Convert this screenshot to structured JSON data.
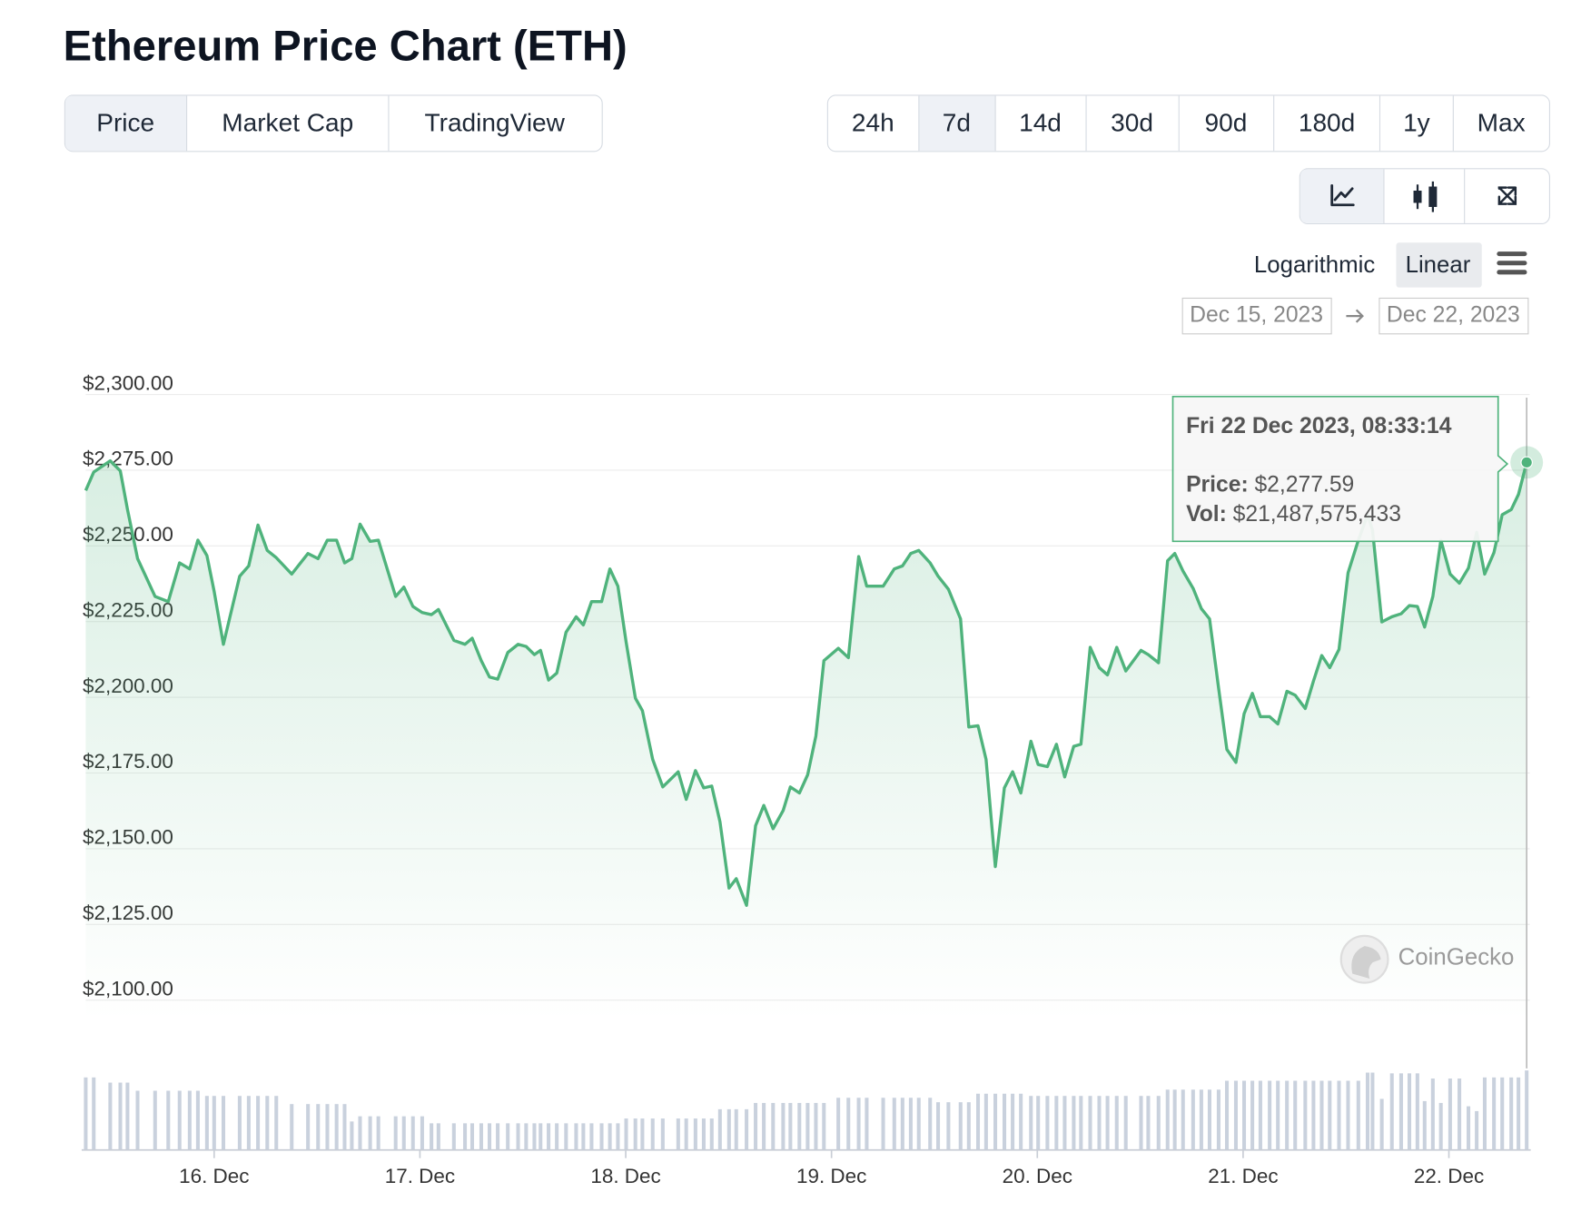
{
  "chart_data": {
    "type": "line",
    "title": "Ethereum Price Chart (ETH)",
    "tabs": [
      "Price",
      "Market Cap",
      "TradingView"
    ],
    "ranges": [
      "24h",
      "7d",
      "14d",
      "30d",
      "90d",
      "180d",
      "1y",
      "Max"
    ],
    "scale_options": [
      "Logarithmic",
      "Linear"
    ],
    "date_from": "Dec 15, 2023",
    "date_to": "Dec 22, 2023",
    "watermark": "CoinGecko",
    "color": "#4fb37c",
    "volume_color": "#c9d1dd",
    "grid": true,
    "ylim": [
      2100,
      2300
    ],
    "yticks": [
      {
        "value": 2300,
        "label": "$2,300.00"
      },
      {
        "value": 2275,
        "label": "$2,275.00"
      },
      {
        "value": 2250,
        "label": "$2,250.00"
      },
      {
        "value": 2225,
        "label": "$2,225.00"
      },
      {
        "value": 2200,
        "label": "$2,200.00"
      },
      {
        "value": 2175,
        "label": "$2,175.00"
      },
      {
        "value": 2150,
        "label": "$2,150.00"
      },
      {
        "value": 2125,
        "label": "$2,125.00"
      },
      {
        "value": 2100,
        "label": "$2,100.00"
      }
    ],
    "xlim": [
      15.376,
      22.378
    ],
    "xticks": [
      {
        "value": 16,
        "label": "16. Dec"
      },
      {
        "value": 17,
        "label": "17. Dec"
      },
      {
        "value": 18,
        "label": "18. Dec"
      },
      {
        "value": 19,
        "label": "19. Dec"
      },
      {
        "value": 20,
        "label": "20. Dec"
      },
      {
        "value": 21,
        "label": "21. Dec"
      },
      {
        "value": 22,
        "label": "22. Dec"
      }
    ],
    "x": [
      15.376,
      15.415,
      15.495,
      15.544,
      15.579,
      15.628,
      15.713,
      15.777,
      15.832,
      15.881,
      15.921,
      15.965,
      16.0,
      16.045,
      16.124,
      16.168,
      16.213,
      16.258,
      16.302,
      16.377,
      16.456,
      16.505,
      16.55,
      16.595,
      16.634,
      16.669,
      16.709,
      16.758,
      16.798,
      16.882,
      16.922,
      16.966,
      17.011,
      17.056,
      17.09,
      17.165,
      17.219,
      17.254,
      17.298,
      17.338,
      17.378,
      17.427,
      17.477,
      17.516,
      17.556,
      17.586,
      17.625,
      17.665,
      17.71,
      17.759,
      17.794,
      17.834,
      17.883,
      17.923,
      17.962,
      18.002,
      18.047,
      18.081,
      18.131,
      18.18,
      18.255,
      18.294,
      18.339,
      18.379,
      18.418,
      18.458,
      18.502,
      18.537,
      18.587,
      18.631,
      18.671,
      18.716,
      18.765,
      18.8,
      18.844,
      18.884,
      18.924,
      18.963,
      19.033,
      19.082,
      19.132,
      19.171,
      19.251,
      19.305,
      19.345,
      19.385,
      19.424,
      19.479,
      19.518,
      19.568,
      19.627,
      19.667,
      19.712,
      19.751,
      19.796,
      19.84,
      19.88,
      19.92,
      19.969,
      20.004,
      20.049,
      20.093,
      20.133,
      20.177,
      20.212,
      20.257,
      20.301,
      20.341,
      20.386,
      20.43,
      20.504,
      20.539,
      20.589,
      20.633,
      20.668,
      20.708,
      20.757,
      20.797,
      20.837,
      20.881,
      20.921,
      20.965,
      21.005,
      21.045,
      21.084,
      21.129,
      21.169,
      21.213,
      21.253,
      21.302,
      21.342,
      21.382,
      21.421,
      21.466,
      21.51,
      21.56,
      21.605,
      21.629,
      21.674,
      21.723,
      21.768,
      21.808,
      21.847,
      21.882,
      21.922,
      21.961,
      22.006,
      22.051,
      22.095,
      22.135,
      22.174,
      22.219,
      22.259,
      22.303,
      22.338,
      22.378
    ],
    "values": [
      2268.3,
      2274.4,
      2278.1,
      2274.8,
      2262.0,
      2245.8,
      2233.3,
      2231.6,
      2244.4,
      2242.4,
      2251.9,
      2246.8,
      2235.0,
      2217.5,
      2240.0,
      2243.4,
      2256.9,
      2248.5,
      2246.1,
      2240.7,
      2247.5,
      2245.8,
      2251.9,
      2251.9,
      2244.4,
      2245.8,
      2257.2,
      2251.5,
      2251.9,
      2233.3,
      2236.4,
      2230.0,
      2228.0,
      2227.3,
      2229.0,
      2218.8,
      2217.5,
      2219.5,
      2212.1,
      2206.7,
      2206.0,
      2214.8,
      2217.5,
      2216.8,
      2214.1,
      2215.5,
      2205.7,
      2208.0,
      2221.5,
      2226.6,
      2223.9,
      2231.6,
      2231.6,
      2242.4,
      2236.7,
      2218.2,
      2199.7,
      2195.6,
      2179.5,
      2170.4,
      2175.4,
      2166.3,
      2175.8,
      2170.1,
      2170.7,
      2158.9,
      2137.0,
      2140.1,
      2131.3,
      2157.6,
      2164.3,
      2156.6,
      2162.6,
      2170.4,
      2168.4,
      2174.4,
      2187.2,
      2212.1,
      2216.2,
      2213.1,
      2246.5,
      2236.7,
      2236.7,
      2242.4,
      2243.4,
      2247.5,
      2248.5,
      2244.4,
      2240.0,
      2235.7,
      2225.9,
      2190.2,
      2190.6,
      2179.5,
      2144.1,
      2170.1,
      2175.4,
      2168.4,
      2185.5,
      2177.8,
      2177.1,
      2184.5,
      2173.7,
      2183.8,
      2184.5,
      2216.5,
      2209.8,
      2207.4,
      2216.5,
      2208.7,
      2215.5,
      2214.1,
      2211.4,
      2245.1,
      2247.5,
      2241.7,
      2236.0,
      2229.3,
      2225.9,
      2203.0,
      2182.8,
      2178.5,
      2194.6,
      2201.3,
      2193.6,
      2193.6,
      2191.2,
      2202.0,
      2200.7,
      2196.3,
      2205.4,
      2213.8,
      2209.8,
      2215.8,
      2241.1,
      2251.9,
      2260.3,
      2255.2,
      2224.9,
      2226.6,
      2227.6,
      2230.3,
      2230.0,
      2223.2,
      2233.3,
      2251.9,
      2240.7,
      2237.7,
      2242.7,
      2254.5,
      2240.7,
      2247.8,
      2260.3,
      2262.0,
      2267.0,
      2277.59
    ],
    "volume": [
      19600000000,
      19600000000,
      18200000000,
      18200000000,
      18200000000,
      16000000000,
      16000000000,
      16000000000,
      16000000000,
      16000000000,
      16000000000,
      14600000000,
      14600000000,
      14600000000,
      14600000000,
      14600000000,
      14600000000,
      14600000000,
      14600000000,
      12400000000,
      12400000000,
      12400000000,
      12400000000,
      12400000000,
      12400000000,
      7700000000,
      9100000000,
      9100000000,
      9100000000,
      9100000000,
      9100000000,
      9100000000,
      9100000000,
      7200000000,
      7200000000,
      7200000000,
      7200000000,
      7200000000,
      7200000000,
      7200000000,
      7200000000,
      7200000000,
      7200000000,
      7200000000,
      7200000000,
      7200000000,
      7200000000,
      7200000000,
      7200000000,
      7200000000,
      7200000000,
      7200000000,
      7200000000,
      7200000000,
      7200000000,
      8500000000,
      8500000000,
      8500000000,
      8500000000,
      8500000000,
      8500000000,
      8500000000,
      8500000000,
      8500000000,
      8500000000,
      11000000000,
      11000000000,
      11000000000,
      11000000000,
      12700000000,
      12700000000,
      12700000000,
      12700000000,
      12700000000,
      12700000000,
      12700000000,
      12700000000,
      12700000000,
      14100000000,
      14100000000,
      14100000000,
      14100000000,
      14100000000,
      14100000000,
      14100000000,
      14100000000,
      14100000000,
      14100000000,
      12900000000,
      12900000000,
      12900000000,
      12900000000,
      15200000000,
      15200000000,
      15200000000,
      15200000000,
      15200000000,
      15200000000,
      14600000000,
      14600000000,
      14600000000,
      14600000000,
      14600000000,
      14600000000,
      14600000000,
      14600000000,
      14600000000,
      14600000000,
      14600000000,
      14600000000,
      14600000000,
      14600000000,
      14600000000,
      16300000000,
      16300000000,
      16300000000,
      16300000000,
      16300000000,
      16300000000,
      16300000000,
      18700000000,
      18700000000,
      18700000000,
      18700000000,
      18700000000,
      18700000000,
      18700000000,
      18700000000,
      18700000000,
      18700000000,
      18700000000,
      18700000000,
      18700000000,
      18700000000,
      18700000000,
      18700000000,
      20900000000,
      20900000000,
      13800000000,
      20700000000,
      20700000000,
      20700000000,
      20700000000,
      13200000000,
      19300000000,
      12700000000,
      19300000000,
      19300000000,
      11800000000,
      10500000000,
      19600000000,
      19600000000,
      19600000000,
      19600000000,
      19600000000,
      21487575433
    ],
    "tooltip": {
      "title": "Fri 22 Dec 2023, 08:33:14",
      "price_label": "Price:",
      "price": "$2,277.59",
      "vol_label": "Vol:",
      "vol": "$21,487,575,433"
    }
  }
}
